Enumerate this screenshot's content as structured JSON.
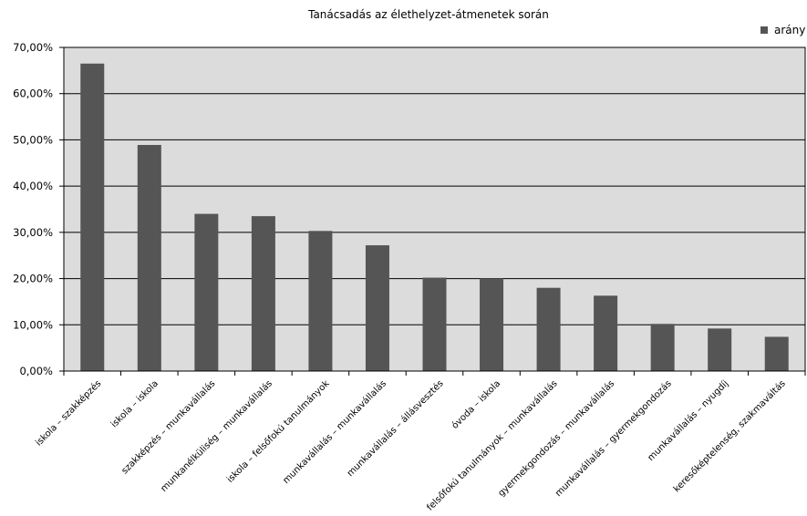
{
  "chart_data": {
    "type": "bar",
    "title": "Tanácsadás az élethelyzet-átmenetek során",
    "legend": {
      "labels": [
        "arány"
      ],
      "position": "top-right"
    },
    "series": [
      {
        "name": "arány",
        "values": [
          66.5,
          48.9,
          34.0,
          33.5,
          30.3,
          27.2,
          20.2,
          20.0,
          18.0,
          16.3,
          10.2,
          9.2,
          7.4
        ]
      }
    ],
    "categories": [
      "iskola – szakképzés",
      "iskola – iskola",
      "szakképzés – munkavállalás",
      "munkanélküliség – munkavállalás",
      "iskola – felsőfokú tanulmányok",
      "munkavállalás – munkavállalás",
      "munkavállalás – állásvesztés",
      "óvoda – iskola",
      "felsőfokú tanulmányok – munkavállalás",
      "gyermekgondozás – munkavállalás",
      "munkavállalás – gyermekgondozás",
      "munkavállalás – nyugdíj",
      "keresőképtelenség, szakmaváltás"
    ],
    "y_ticks": [
      "0,00%",
      "10,00%",
      "20,00%",
      "30,00%",
      "40,00%",
      "50,00%",
      "60,00%",
      "70,00%"
    ],
    "ylim": [
      0,
      70
    ],
    "grid": true,
    "colors": {
      "bar": "#555555",
      "plot_background": "#dcdcdc",
      "grid": "#000000"
    }
  }
}
